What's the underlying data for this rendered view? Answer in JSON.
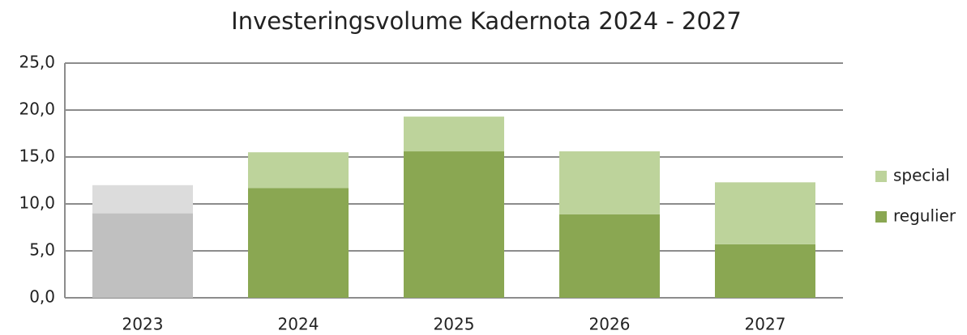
{
  "chart_data": {
    "type": "stacked_bar",
    "title": "Investeringsvolume Kadernota 2024 - 2027",
    "categories": [
      "2023",
      "2024",
      "2025",
      "2026",
      "2027"
    ],
    "series": [
      {
        "name": "regulier",
        "color": "#8aa752",
        "colors": [
          "#c0c0c0",
          "#8aa752",
          "#8aa752",
          "#8aa752",
          "#8aa752"
        ],
        "values": [
          9.0,
          11.7,
          15.6,
          8.9,
          5.7
        ]
      },
      {
        "name": "special",
        "color": "#bdd39b",
        "colors": [
          "#dcdcdc",
          "#bdd39b",
          "#bdd39b",
          "#bdd39b",
          "#bdd39b"
        ],
        "values": [
          3.0,
          3.8,
          3.7,
          6.7,
          6.6
        ]
      }
    ],
    "ylim": [
      0,
      25
    ],
    "yticks": [
      {
        "value": 0,
        "label": "0,0"
      },
      {
        "value": 5,
        "label": "5,0"
      },
      {
        "value": 10,
        "label": "10,0"
      },
      {
        "value": 15,
        "label": "15,0"
      },
      {
        "value": 20,
        "label": "20,0"
      },
      {
        "value": 25,
        "label": "25,0"
      }
    ],
    "grid": true,
    "legend": "right"
  }
}
